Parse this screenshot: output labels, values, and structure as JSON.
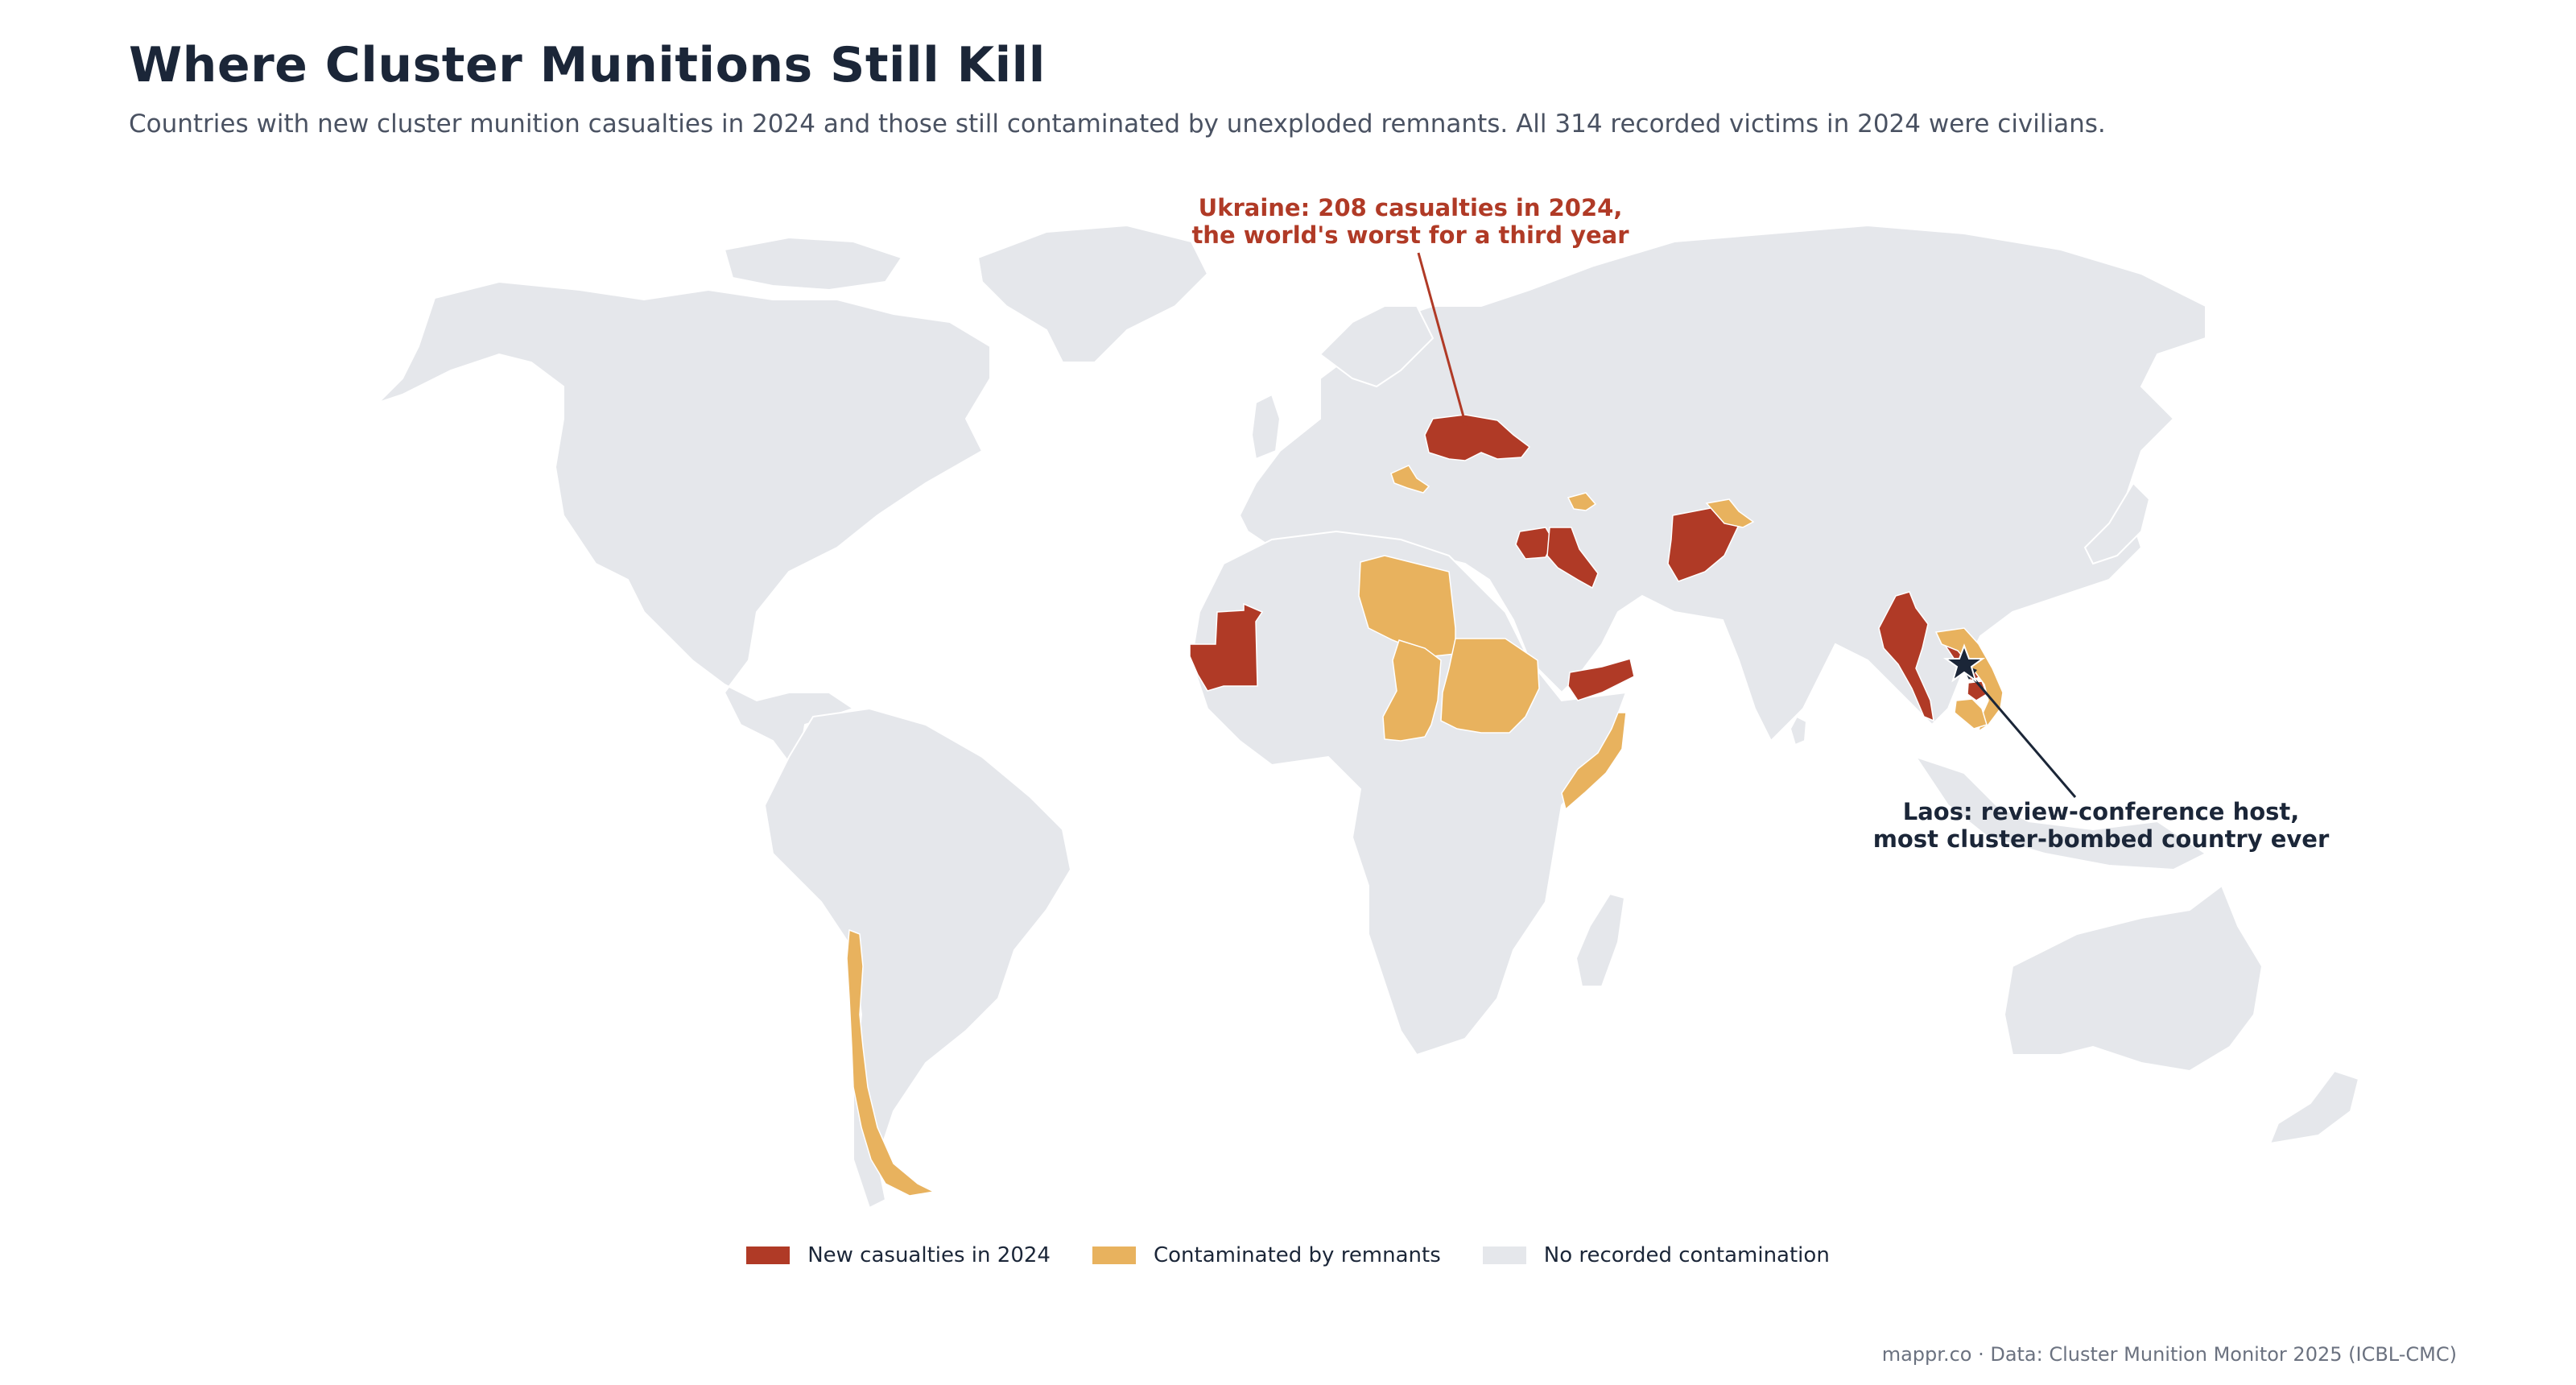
{
  "title": "Where Cluster Munitions Still Kill",
  "subtitle": "Countries with new cluster munition casualties in 2024 and those still contaminated by unexploded remnants. All 314 recorded victims in 2024 were civilians.",
  "colors": {
    "new_casualties": "#b03a26",
    "contaminated": "#e8b25e",
    "no_contamination": "#e5e7eb",
    "marker": "#1b2638"
  },
  "annotations": {
    "ukraine": {
      "line1": "Ukraine: 208 casualties in 2024,",
      "line2": "the world's worst for a third year"
    },
    "laos": {
      "line1": "Laos: review-conference host,",
      "line2": "most cluster-bombed country ever"
    }
  },
  "marker_icon": "star-icon",
  "legend": [
    {
      "label": "New casualties in 2024",
      "color": "#b03a26"
    },
    {
      "label": "Contaminated by remnants",
      "color": "#e8b25e"
    },
    {
      "label": "No recorded contamination",
      "color": "#e5e7eb"
    }
  ],
  "source": "mappr.co · Data: Cluster Munition Monitor 2025 (ICBL-CMC)"
}
